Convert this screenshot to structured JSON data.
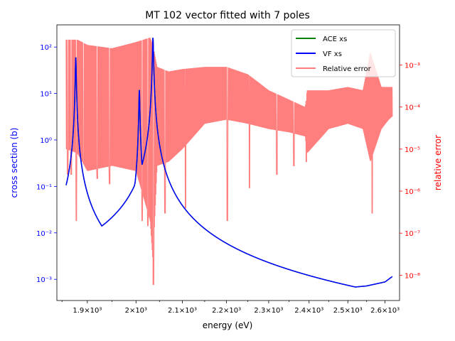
{
  "chart_data": {
    "type": "line",
    "title": "MT 102 vector fitted with 7 poles",
    "xlabel": "energy (eV)",
    "ylabel_left": "cross section (b)",
    "ylabel_right": "relative error",
    "x_scale": "log",
    "y_left_scale": "log",
    "y_right_scale": "log",
    "xlim": [
      1840,
      2640
    ],
    "ylim_left": [
      0.00035,
      300
    ],
    "ylim_right": [
      2.5e-09,
      0.009
    ],
    "grid": false,
    "legend_position": "upper-right",
    "x_ticks": [
      {
        "value": 1900,
        "label": "1.9×10³"
      },
      {
        "value": 2000,
        "label": "2×10³"
      },
      {
        "value": 2100,
        "label": "2.1×10³"
      },
      {
        "value": 2200,
        "label": "2.2×10³"
      },
      {
        "value": 2300,
        "label": "2.3×10³"
      },
      {
        "value": 2400,
        "label": "2.4×10³"
      },
      {
        "value": 2500,
        "label": "2.5×10³"
      },
      {
        "value": 2600,
        "label": "2.6×10³"
      }
    ],
    "y_left_ticks": [
      {
        "value": 0.001,
        "label": "10⁻³"
      },
      {
        "value": 0.01,
        "label": "10⁻²"
      },
      {
        "value": 0.1,
        "label": "10⁻¹"
      },
      {
        "value": 1,
        "label": "10⁰"
      },
      {
        "value": 10,
        "label": "10¹"
      },
      {
        "value": 100,
        "label": "10²"
      }
    ],
    "y_right_ticks": [
      {
        "value": 1e-08,
        "label": "10⁻⁸"
      },
      {
        "value": 1e-07,
        "label": "10⁻⁷"
      },
      {
        "value": 1e-06,
        "label": "10⁻⁶"
      },
      {
        "value": 1e-05,
        "label": "10⁻⁵"
      },
      {
        "value": 0.0001,
        "label": "10⁻⁴"
      },
      {
        "value": 0.001,
        "label": "10⁻³"
      }
    ],
    "resonances": [
      {
        "energy": 1877,
        "peak_xs": 60,
        "width": 0.8
      },
      {
        "energy": 2007,
        "peak_xs": 12,
        "width": 0.9
      },
      {
        "energy": 2036,
        "peak_xs": 160,
        "width": 1.0
      }
    ],
    "series": [
      {
        "name": "ACE xs",
        "color": "#008000",
        "axis": "left",
        "x": [
          1858,
          1862,
          1866,
          1870,
          1874,
          1877,
          1880,
          1884,
          1890,
          1900,
          1915,
          1930,
          1950,
          1970,
          1990,
          2000,
          2004,
          2007,
          2010,
          2015,
          2025,
          2030,
          2034,
          2036,
          2039,
          2045,
          2060,
          2080,
          2100,
          2150,
          2200,
          2250,
          2300,
          2350,
          2400,
          2450,
          2500,
          2550,
          2600,
          2620
        ],
        "values": [
          0.05,
          0.016,
          0.014,
          0.03,
          0.3,
          60,
          0.3,
          0.02,
          0.007,
          0.0045,
          0.0045,
          0.006,
          0.01,
          0.018,
          0.05,
          0.15,
          0.8,
          12,
          0.08,
          0.1,
          0.3,
          0.6,
          4,
          160,
          5,
          0.3,
          0.06,
          0.025,
          0.013,
          0.005,
          0.0025,
          0.0015,
          0.00105,
          0.0008,
          0.0007,
          0.00065,
          0.00066,
          0.00072,
          0.00088,
          0.00115
        ]
      },
      {
        "name": "VF xs",
        "color": "#0000ff",
        "axis": "left",
        "x": [
          1858,
          1862,
          1866,
          1870,
          1874,
          1877,
          1880,
          1884,
          1890,
          1900,
          1915,
          1930,
          1950,
          1970,
          1990,
          2000,
          2004,
          2007,
          2010,
          2015,
          2025,
          2030,
          2034,
          2036,
          2039,
          2045,
          2060,
          2080,
          2100,
          2150,
          2200,
          2250,
          2300,
          2350,
          2400,
          2450,
          2500,
          2550,
          2600,
          2620
        ],
        "values": [
          0.05,
          0.016,
          0.014,
          0.03,
          0.3,
          60,
          0.3,
          0.02,
          0.007,
          0.0045,
          0.0045,
          0.006,
          0.01,
          0.018,
          0.05,
          0.15,
          0.8,
          12,
          0.08,
          0.1,
          0.3,
          0.6,
          4,
          160,
          5,
          0.3,
          0.06,
          0.025,
          0.013,
          0.005,
          0.0025,
          0.0015,
          0.00105,
          0.0008,
          0.0007,
          0.00065,
          0.00066,
          0.00072,
          0.00088,
          0.00115
        ]
      },
      {
        "name": "Relative error",
        "color": "#ff0000",
        "axis": "right",
        "opacity": 0.5,
        "envelope": {
          "x": [
            1858,
            1880,
            1890,
            1900,
            1950,
            2000,
            2030,
            2036,
            2045,
            2070,
            2100,
            2150,
            2200,
            2250,
            2300,
            2350,
            2390,
            2395,
            2450,
            2500,
            2540,
            2560,
            2590,
            2610,
            2620
          ],
          "upper": [
            0.004,
            0.004,
            0.0035,
            0.003,
            0.0025,
            0.0035,
            0.0045,
            0.003,
            0.0009,
            0.0007,
            0.0008,
            0.0009,
            0.0009,
            0.0006,
            0.00025,
            0.00015,
            0.0001,
            0.00025,
            0.00025,
            0.0003,
            0.00025,
            0.002,
            0.0003,
            0.0003,
            0.0003
          ],
          "lower": [
            1e-05,
            8e-06,
            5e-06,
            3e-06,
            4e-06,
            3e-06,
            2e-07,
            2e-08,
            4e-06,
            5e-06,
            1e-05,
            4e-05,
            5e-05,
            4e-05,
            3e-05,
            2.5e-05,
            2e-05,
            8e-06,
            3e-05,
            4e-05,
            3e-05,
            5e-06,
            3e-05,
            5e-05,
            6e-05
          ]
        },
        "dips": [
          {
            "x": 1861,
            "value": 2.5e-06
          },
          {
            "x": 1868,
            "value": 2.5e-06
          },
          {
            "x": 1878,
            "value": 2e-07
          },
          {
            "x": 1892,
            "value": 5e-06
          },
          {
            "x": 1920,
            "value": 2e-06
          },
          {
            "x": 1945,
            "value": 1.5e-06
          },
          {
            "x": 2013,
            "value": 2e-07
          },
          {
            "x": 2025,
            "value": 1.5e-07
          },
          {
            "x": 2037,
            "value": 6e-09
          },
          {
            "x": 2062,
            "value": 3e-07
          },
          {
            "x": 2107,
            "value": 4e-07
          },
          {
            "x": 2202,
            "value": 2e-07
          },
          {
            "x": 2254,
            "value": 1.2e-06
          },
          {
            "x": 2320,
            "value": 2.5e-06
          },
          {
            "x": 2362,
            "value": 4e-06
          },
          {
            "x": 2393,
            "value": 5e-06
          },
          {
            "x": 2565,
            "value": 3e-07
          }
        ]
      }
    ]
  }
}
